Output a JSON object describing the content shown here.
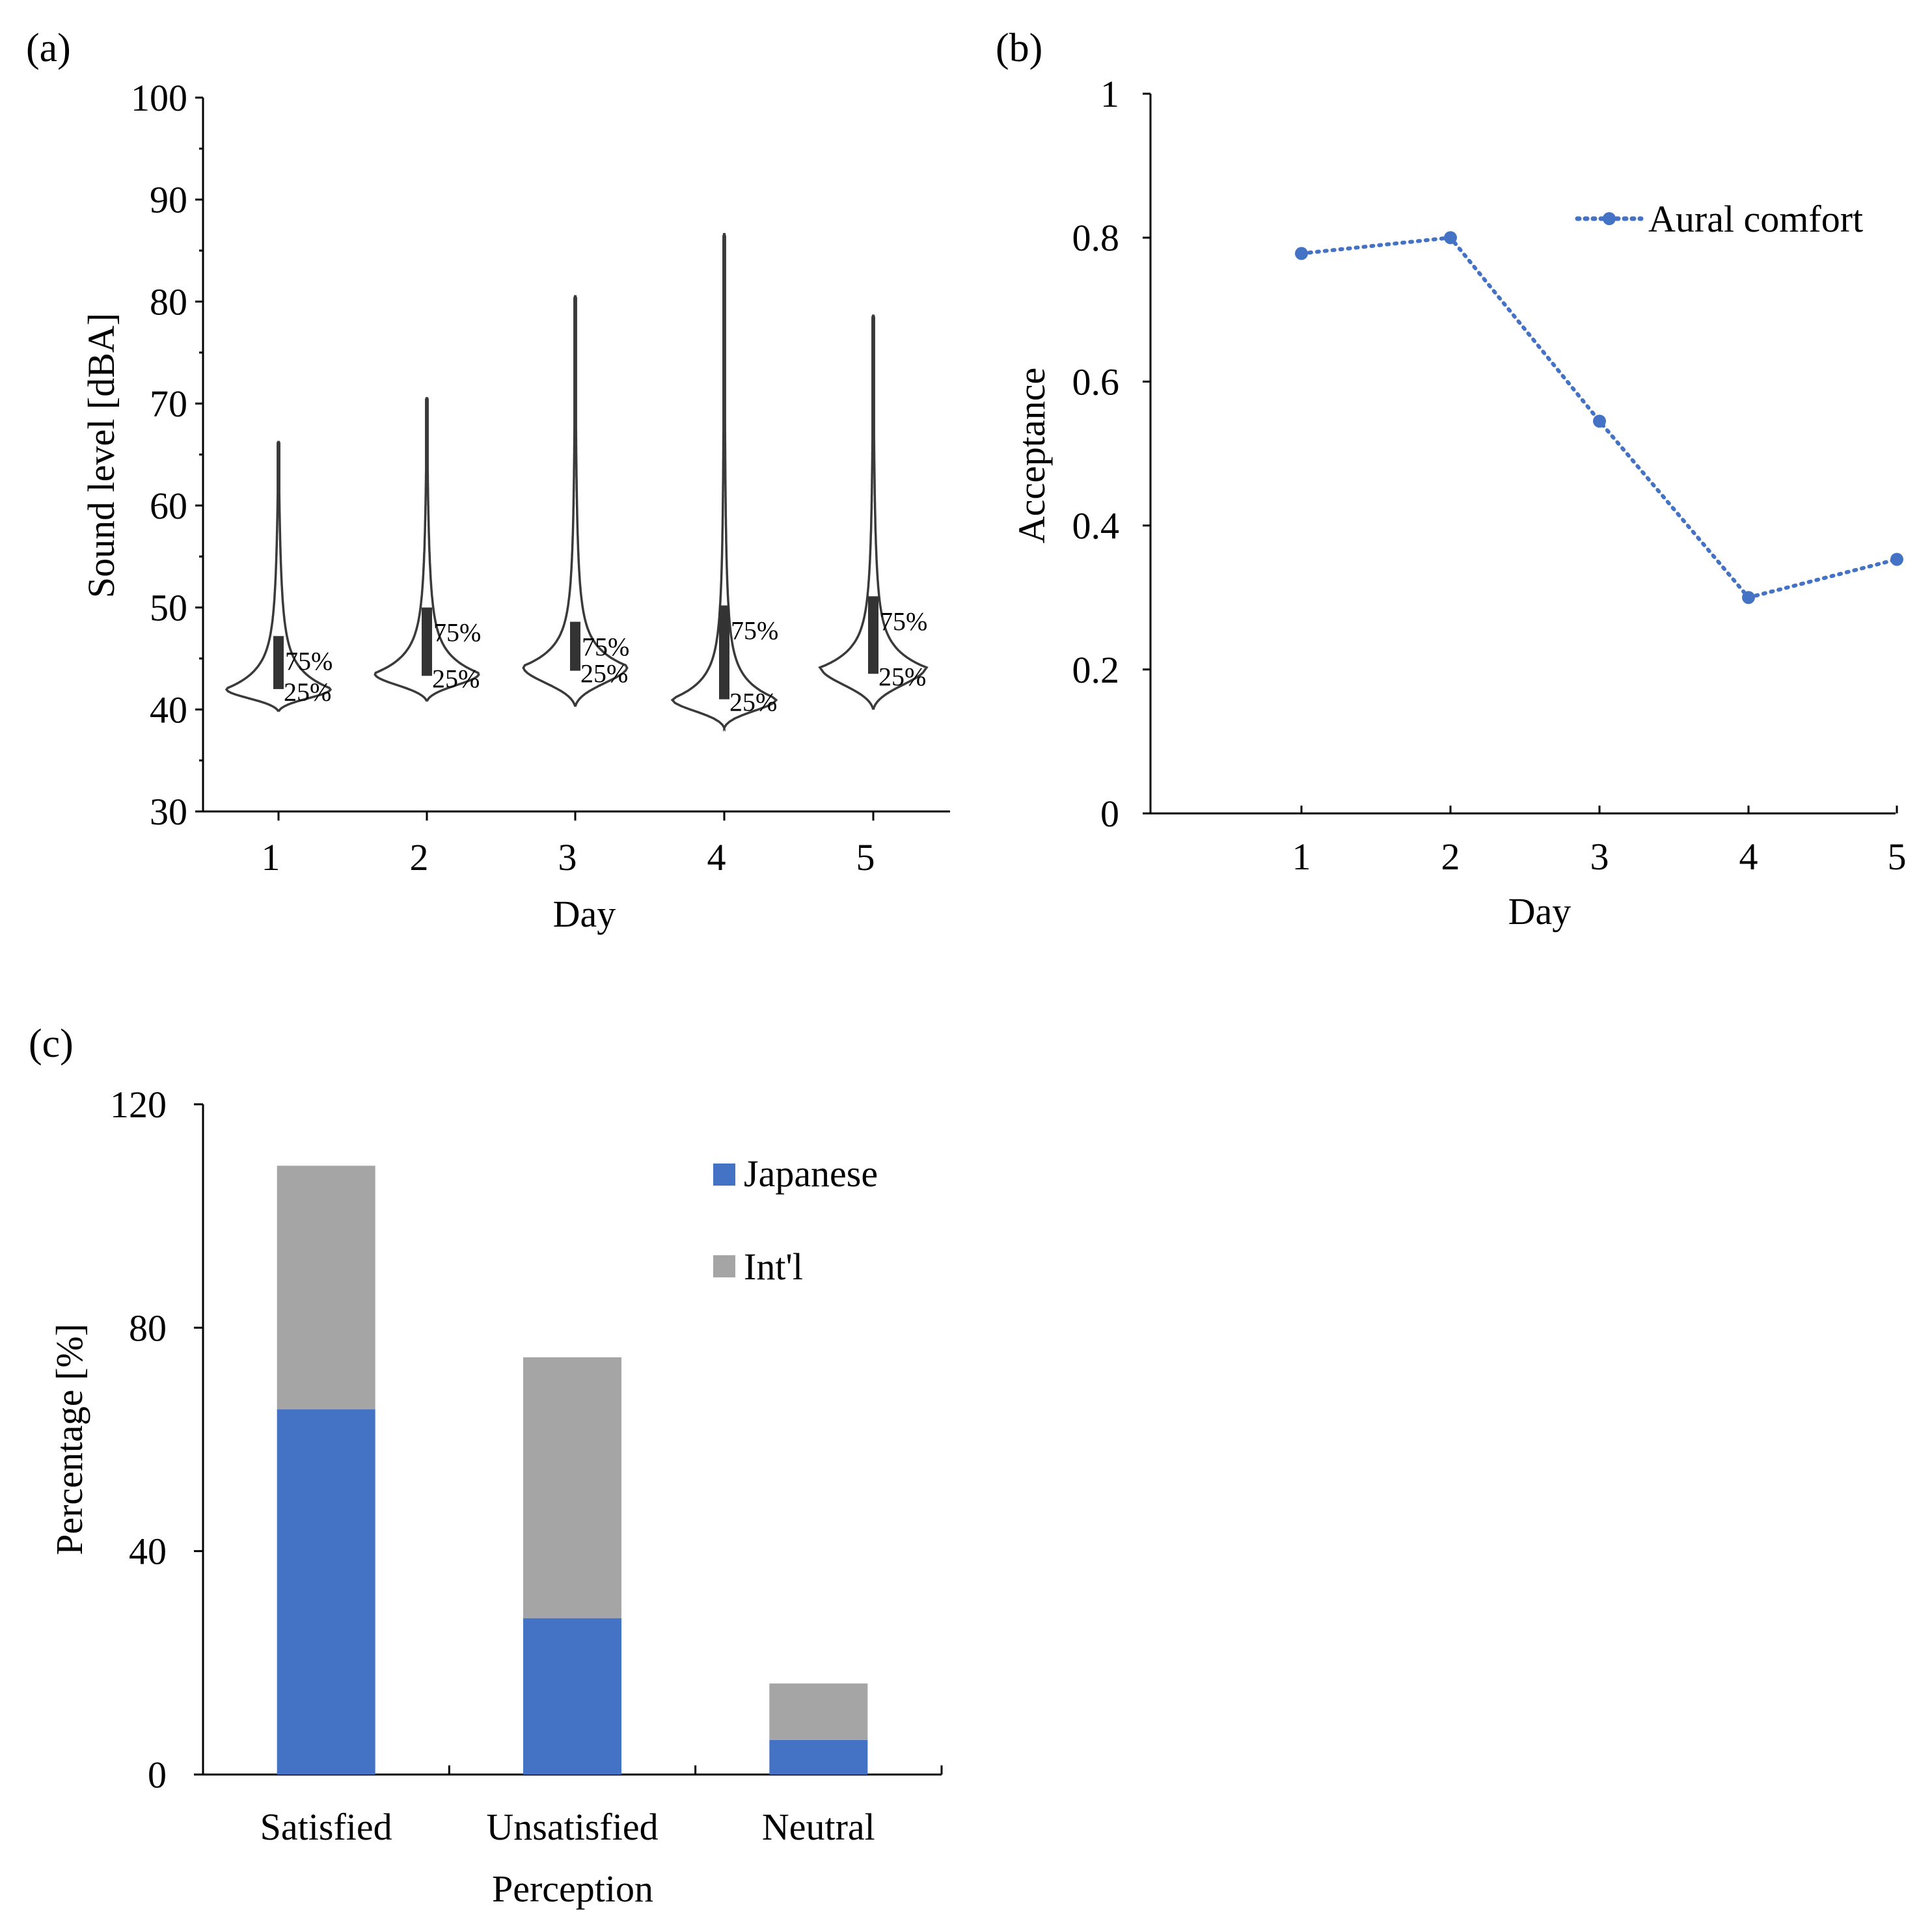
{
  "panels": {
    "a": {
      "label": "(a)"
    },
    "b": {
      "label": "(b)"
    },
    "c": {
      "label": "(c)"
    }
  },
  "chart_data": [
    {
      "id": "a",
      "type": "violin",
      "xlabel": "Day",
      "ylabel": "Sound level [dBA]",
      "ylim": [
        30,
        100
      ],
      "yticks": [
        30,
        40,
        50,
        60,
        70,
        80,
        90,
        100
      ],
      "categories": [
        "1",
        "2",
        "3",
        "4",
        "5"
      ],
      "quartile_labels": {
        "upper": "75%",
        "lower": "25%"
      },
      "violins": [
        {
          "day": "1",
          "min": 39.8,
          "max": 66.3,
          "mode": 42.0,
          "q1": 42.0,
          "q3": 47.2
        },
        {
          "day": "2",
          "min": 40.8,
          "max": 70.6,
          "mode": 43.5,
          "q1": 43.3,
          "q3": 50.0
        },
        {
          "day": "3",
          "min": 40.3,
          "max": 80.6,
          "mode": 44.2,
          "q1": 43.8,
          "q3": 48.6
        },
        {
          "day": "4",
          "min": 38.2,
          "max": 86.7,
          "mode": 41.0,
          "q1": 41.0,
          "q3": 50.2
        },
        {
          "day": "5",
          "min": 40.0,
          "max": 78.7,
          "mode": 44.1,
          "q1": 43.5,
          "q3": 51.1
        }
      ]
    },
    {
      "id": "b",
      "type": "line",
      "xlabel": "Day",
      "ylabel": "Acceptance",
      "ylim": [
        0,
        1
      ],
      "yticks": [
        "0",
        "0.2",
        "0.4",
        "0.6",
        "0.8",
        "1"
      ],
      "x": [
        "1",
        "2",
        "3",
        "4",
        "5"
      ],
      "series": [
        {
          "name": "Aural comfort",
          "values": [
            0.778,
            0.8,
            0.545,
            0.3,
            0.353
          ],
          "color": "#4472c4",
          "style": "dotted"
        }
      ],
      "legend": "top-right"
    },
    {
      "id": "c",
      "type": "bar",
      "stacked": true,
      "xlabel": "Perception",
      "ylabel": "Percentage [%]",
      "ylim": [
        0,
        120
      ],
      "yticks": [
        "0",
        "40",
        "80",
        "120"
      ],
      "categories": [
        "Satisfied",
        "Unsatisfied",
        "Neutral"
      ],
      "series": [
        {
          "name": "Japanese",
          "values": [
            65.4,
            28.0,
            6.2
          ],
          "color": "#4472c4"
        },
        {
          "name": "Int'l",
          "values": [
            43.6,
            46.7,
            10.1
          ],
          "color": "#a5a5a5"
        }
      ],
      "legend": "top-right"
    }
  ]
}
